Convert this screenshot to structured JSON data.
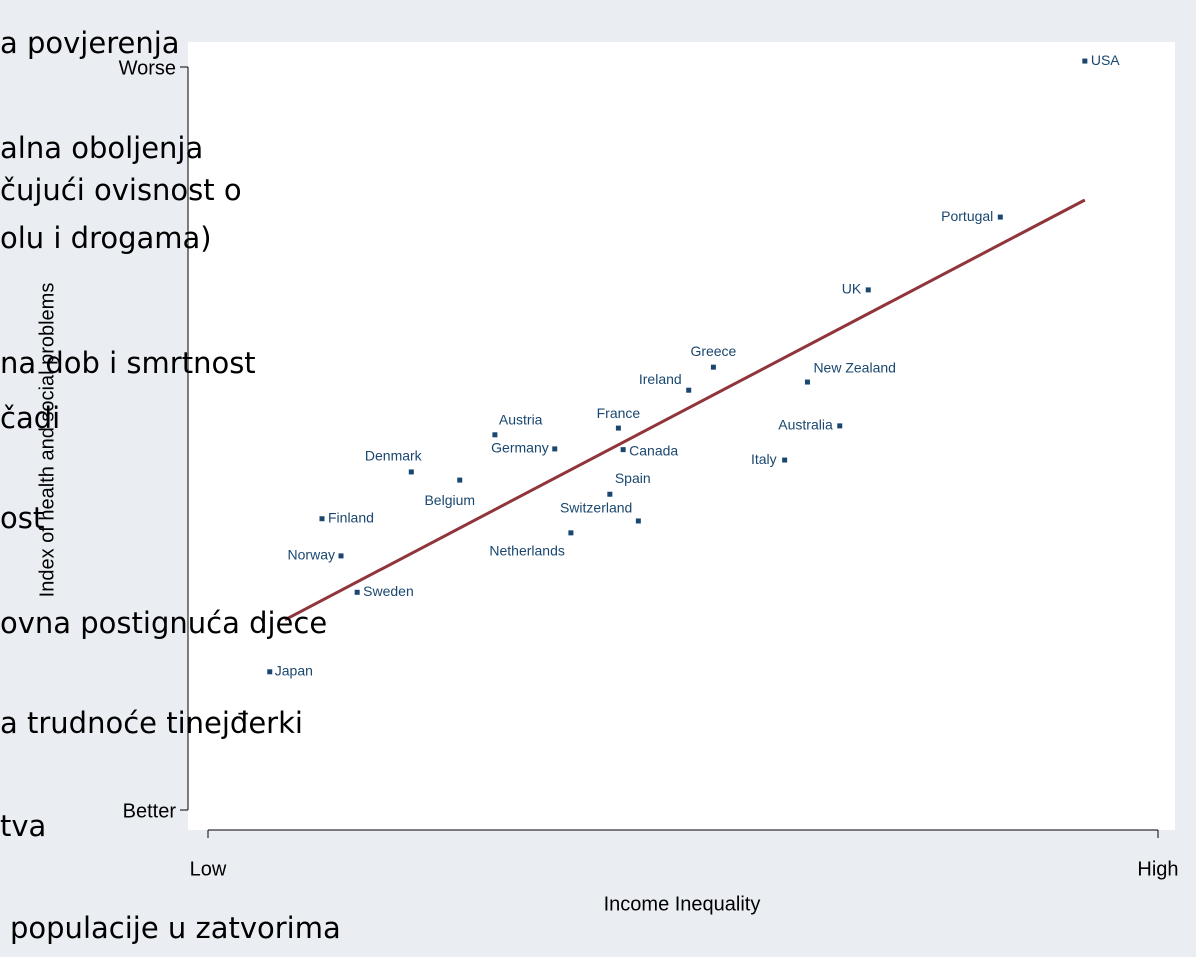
{
  "chart_data": {
    "type": "scatter",
    "xlabel": "Income Inequality",
    "ylabel": "Index of health and social problems",
    "xlim": [
      0,
      100
    ],
    "ylim": [
      0,
      100
    ],
    "xticks": [
      {
        "value": 0,
        "label": "Low"
      },
      {
        "value": 100,
        "label": "High"
      }
    ],
    "yticks": [
      {
        "value": 0,
        "label": "Better"
      },
      {
        "value": 100,
        "label": "Worse"
      }
    ],
    "color": "#1a476f",
    "labels": [
      "USA",
      "Portugal",
      "UK",
      "Greece",
      "New Zealand",
      "Ireland",
      "Austria",
      "France",
      "Australia",
      "Germany",
      "Canada",
      "Denmark",
      "Belgium",
      "Italy",
      "Spain",
      "Switzerland",
      "Netherlands",
      "Finland",
      "Norway",
      "Sweden",
      "Japan"
    ],
    "x": [
      92.3,
      83.4,
      69.5,
      53.2,
      63.1,
      50.6,
      30.2,
      43.2,
      66.5,
      36.5,
      43.7,
      21.4,
      26.5,
      60.7,
      42.3,
      45.3,
      38.2,
      12.0,
      14.0,
      15.7,
      6.5
    ],
    "y": [
      100.8,
      79.8,
      70.0,
      59.6,
      57.6,
      56.5,
      50.5,
      51.4,
      51.7,
      48.6,
      48.5,
      45.5,
      44.4,
      47.1,
      42.5,
      38.9,
      37.3,
      39.2,
      34.2,
      29.3,
      18.6
    ],
    "trend_line": {
      "color": "#90353b",
      "x": [
        8.1,
        92.3
      ],
      "y": [
        25.6,
        82.1
      ]
    }
  },
  "slide_text": [
    "a povjerenja",
    "alna oboljenja",
    "čujući ovisnost o",
    "olu i drogama)",
    "na dob i smrtnost",
    "čadi",
    "ost",
    "ovna postignuća djece",
    "a trudnoće tinejđerki",
    "tva",
    "populacije u zatvorima"
  ]
}
